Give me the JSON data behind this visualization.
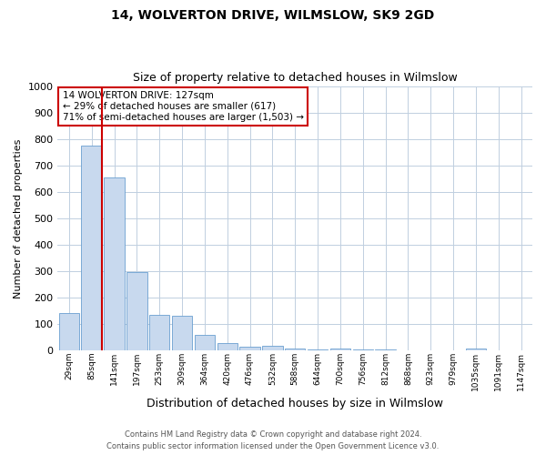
{
  "title1": "14, WOLVERTON DRIVE, WILMSLOW, SK9 2GD",
  "title2": "Size of property relative to detached houses in Wilmslow",
  "xlabel": "Distribution of detached houses by size in Wilmslow",
  "ylabel": "Number of detached properties",
  "bar_color": "#c8d9ee",
  "bar_edge_color": "#6a9fd0",
  "annotation_line_color": "#cc0000",
  "annotation_box_edge_color": "#cc0000",
  "annotation_text": "14 WOLVERTON DRIVE: 127sqm\n← 29% of detached houses are smaller (617)\n71% of semi-detached houses are larger (1,503) →",
  "property_size_bin_index": 1,
  "categories": [
    "29sqm",
    "85sqm",
    "141sqm",
    "197sqm",
    "253sqm",
    "309sqm",
    "364sqm",
    "420sqm",
    "476sqm",
    "532sqm",
    "588sqm",
    "644sqm",
    "700sqm",
    "756sqm",
    "812sqm",
    "868sqm",
    "923sqm",
    "979sqm",
    "1035sqm",
    "1091sqm",
    "1147sqm"
  ],
  "values": [
    140,
    775,
    655,
    295,
    135,
    130,
    58,
    28,
    15,
    18,
    8,
    5,
    8,
    5,
    3,
    2,
    0,
    0,
    8,
    0,
    0
  ],
  "ylim": [
    0,
    1000
  ],
  "yticks": [
    0,
    100,
    200,
    300,
    400,
    500,
    600,
    700,
    800,
    900,
    1000
  ],
  "footer1": "Contains HM Land Registry data © Crown copyright and database right 2024.",
  "footer2": "Contains public sector information licensed under the Open Government Licence v3.0.",
  "background_color": "#ffffff",
  "grid_color": "#c0cfe0",
  "title1_fontsize": 10,
  "title2_fontsize": 9,
  "ylabel_fontsize": 8,
  "xlabel_fontsize": 9,
  "ytick_fontsize": 8,
  "xtick_fontsize": 6.5,
  "footer_fontsize": 6,
  "ann_fontsize": 7.5
}
